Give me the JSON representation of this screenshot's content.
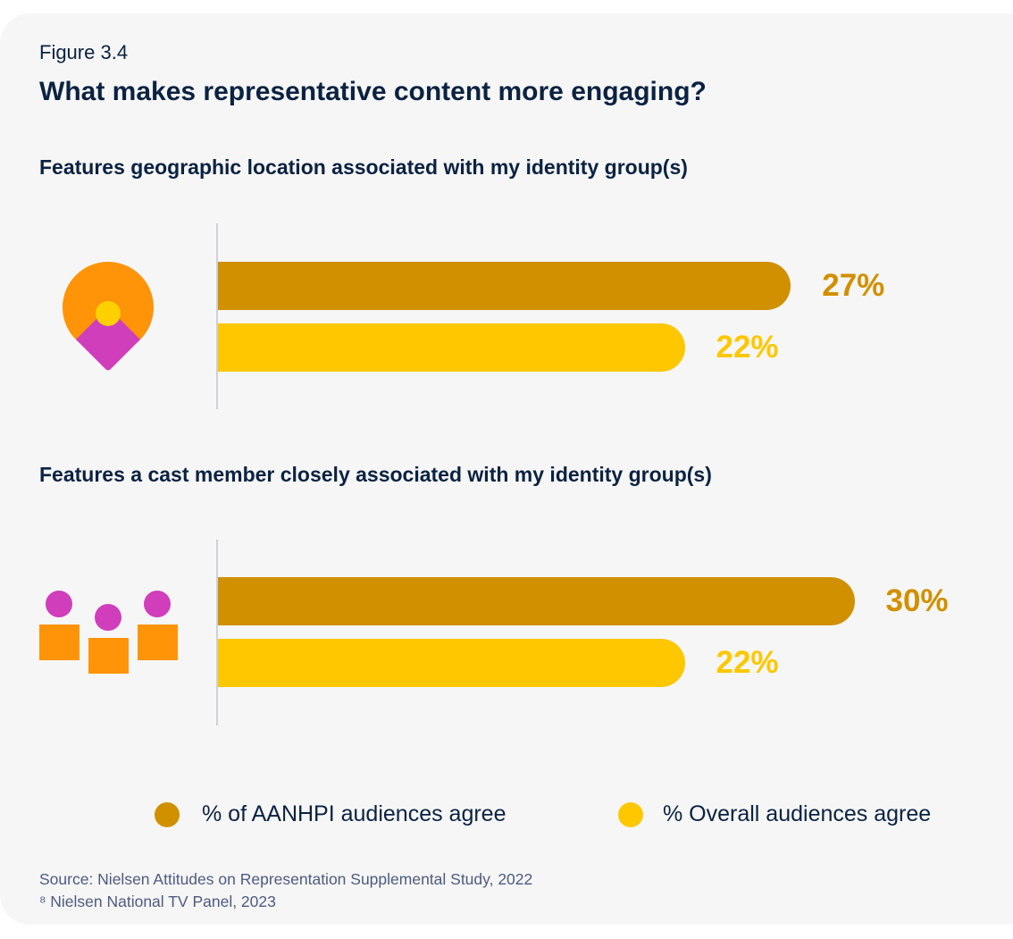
{
  "figure_label": "Figure 3.4",
  "title": "What makes representative content more engaging?",
  "chart_data": {
    "type": "bar",
    "orientation": "horizontal",
    "title": "What makes representative content more engaging?",
    "categories": [
      "Features geographic location associated with my identity group(s)",
      "Features a cast member closely associated with my identity group(s)"
    ],
    "category_icons": [
      "location-pin-icon",
      "people-group-icon"
    ],
    "series": [
      {
        "name": "% of AANHPI audiences agree",
        "values": [
          27,
          30
        ],
        "color": "#D19000"
      },
      {
        "name": "% Overall audiences agree",
        "values": [
          22,
          22
        ],
        "color": "#FFC700"
      }
    ],
    "data_labels": [
      [
        "27%",
        "30%"
      ],
      [
        "22%",
        "22%"
      ]
    ],
    "unit": "%",
    "grid": false,
    "legend_position": "bottom"
  },
  "source": [
    "Source: Nielsen Attitudes on Representation Supplemental Study, 2022",
    "⁸ Nielsen National TV Panel, 2023"
  ]
}
